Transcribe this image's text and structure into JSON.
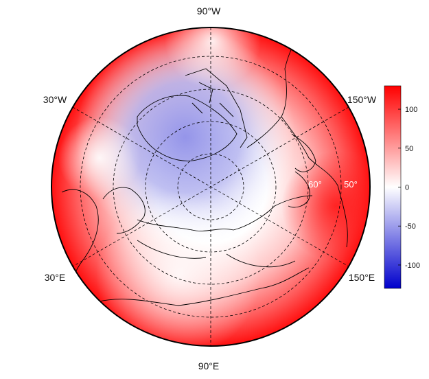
{
  "map": {
    "projection": "north-polar-stereographic",
    "lon_labels": {
      "top": "90°W",
      "upper_left": "30°W",
      "upper_right": "150°W",
      "lower_left": "30°E",
      "lower_right": "150°E",
      "bottom": "90°E"
    },
    "lat_labels": [
      "60°",
      "50°"
    ],
    "field_pattern": "negative anomaly over Arctic/Greenland/Canadian Archipelago, positive ring in mid-latitudes",
    "coastline_color": "#000000",
    "graticule_color": "#000000"
  },
  "colorbar": {
    "ticks": [
      "100",
      "50",
      "0",
      "-50",
      "-100"
    ],
    "tick_values": [
      100,
      50,
      0,
      -50,
      -100
    ],
    "range": [
      -130,
      130
    ],
    "colors": {
      "max": "#ff0000",
      "mid": "#ffffff",
      "min": "#0000cc"
    }
  }
}
